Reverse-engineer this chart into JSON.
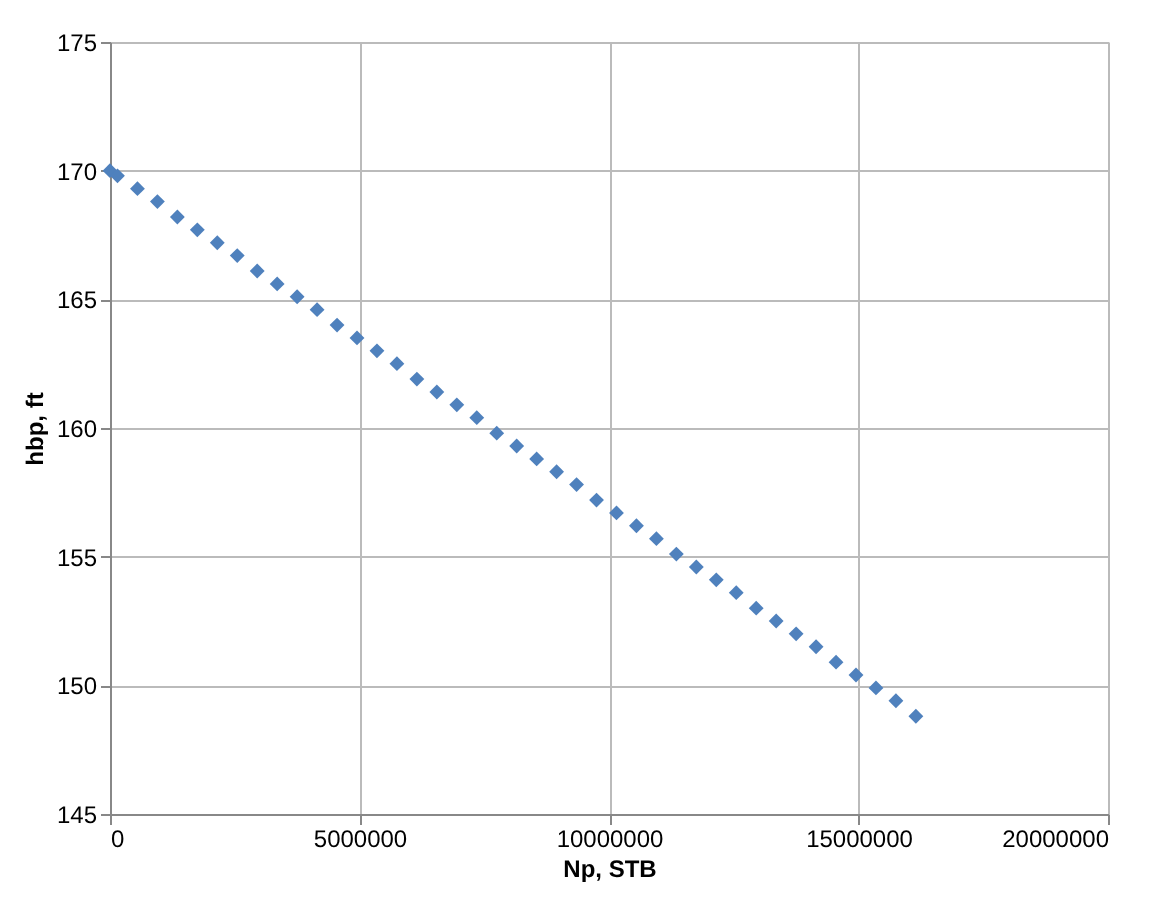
{
  "chart_data": {
    "type": "scatter",
    "xlabel": "Np, STB",
    "ylabel": "hbp, ft",
    "x": [
      0,
      150000,
      550000,
      950000,
      1350000,
      1750000,
      2150000,
      2550000,
      2950000,
      3350000,
      3750000,
      4150000,
      4550000,
      4950000,
      5350000,
      5750000,
      6150000,
      6550000,
      6950000,
      7350000,
      7750000,
      8150000,
      8550000,
      8950000,
      9350000,
      9750000,
      10150000,
      10550000,
      10950000,
      11350000,
      11750000,
      12150000,
      12550000,
      12950000,
      13350000,
      13750000,
      14150000,
      14550000,
      14950000,
      15350000,
      15750000,
      16150000
    ],
    "series": [
      {
        "color": "#4f81bd",
        "values": [
          170,
          169.8,
          169.3,
          168.8,
          168.2,
          167.7,
          167.2,
          166.7,
          166.1,
          165.6,
          165.1,
          164.6,
          164.0,
          163.5,
          163.0,
          162.5,
          161.9,
          161.4,
          160.9,
          160.4,
          159.8,
          159.3,
          158.8,
          158.3,
          157.8,
          157.2,
          156.7,
          156.2,
          155.7,
          155.1,
          154.6,
          154.1,
          153.6,
          153.0,
          152.5,
          152.0,
          151.5,
          150.9,
          150.4,
          149.9,
          149.4,
          148.8
        ]
      }
    ],
    "xlim": [
      0,
      20000000
    ],
    "xticks": [
      0,
      5000000,
      10000000,
      15000000,
      20000000
    ],
    "ylim": [
      145,
      175
    ],
    "yticks": [
      145,
      150,
      155,
      160,
      165,
      170,
      175
    ],
    "grid": true,
    "marker": "diamond"
  }
}
